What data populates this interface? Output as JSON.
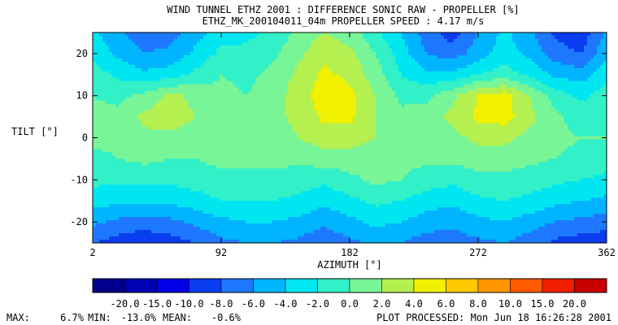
{
  "chart_data": {
    "type": "heatmap",
    "title": "WIND TUNNEL ETHZ 2001 : DIFFERENCE SONIC RAW - PROPELLER  [%]",
    "subtitle": "ETHZ_MK_200104011_04m PROPELLER SPEED :  4.17 m/s",
    "xlabel": "AZIMUTH [°]",
    "ylabel": "TILT [°]",
    "xlim": [
      2,
      362
    ],
    "ylim": [
      -25,
      25
    ],
    "x_ticks": [
      "2",
      "92",
      "182",
      "272",
      "362"
    ],
    "y_ticks": [
      "20",
      "10",
      "0",
      "-10",
      "-20"
    ],
    "levels": [
      -25.0,
      -20.0,
      -15.0,
      -10.0,
      -8.0,
      -6.0,
      -4.0,
      -2.0,
      0.0,
      2.0,
      4.0,
      6.0,
      8.0,
      10.0,
      15.0,
      20.0,
      25.0
    ],
    "colorbar_labels": [
      "-20.0",
      "-15.0",
      "-10.0",
      "-8.0",
      "-6.0",
      "-4.0",
      "-2.0",
      "0.0",
      "2.0",
      "4.0",
      "6.0",
      "8.0",
      "10.0",
      "15.0",
      "20.0"
    ],
    "colors": [
      "#00008c",
      "#0000b4",
      "#0000e6",
      "#0a3cf0",
      "#1e78ff",
      "#00b4ff",
      "#00e6f0",
      "#32f0c8",
      "#78f596",
      "#b4f050",
      "#f0f000",
      "#ffc800",
      "#ff9600",
      "#ff5a00",
      "#f01e00",
      "#c80000"
    ],
    "grid_tilt": [
      25,
      20,
      15,
      10,
      5,
      0,
      -5,
      -10,
      -15,
      -20,
      -25
    ],
    "grid_azimuth": [
      2,
      20,
      38,
      56,
      74,
      92,
      110,
      128,
      146,
      164,
      182,
      200,
      218,
      236,
      254,
      272,
      290,
      308,
      326,
      344,
      362
    ],
    "values": [
      [
        -3.5,
        -5.5,
        -7.5,
        -7.0,
        -5.0,
        -3.0,
        -2.5,
        -1.5,
        0.5,
        2.0,
        1.0,
        -1.5,
        -4.0,
        -7.0,
        -9.0,
        -6.0,
        -3.5,
        -5.5,
        -8.5,
        -9.5,
        -5.5
      ],
      [
        -2.5,
        -4.5,
        -6.0,
        -5.5,
        -3.5,
        -1.5,
        -1.5,
        -0.5,
        1.5,
        3.5,
        2.5,
        0.0,
        -3.0,
        -6.0,
        -7.0,
        -5.0,
        -3.0,
        -4.5,
        -7.0,
        -8.0,
        -4.5
      ],
      [
        -1.0,
        -2.5,
        -3.5,
        -3.0,
        -1.5,
        0.0,
        -0.5,
        0.5,
        2.5,
        4.5,
        3.5,
        1.0,
        -2.0,
        -3.5,
        -3.5,
        -2.0,
        -1.0,
        -2.5,
        -4.5,
        -5.0,
        -2.5
      ],
      [
        0.0,
        -0.5,
        0.5,
        2.5,
        1.5,
        0.5,
        0.0,
        1.0,
        3.0,
        5.0,
        4.5,
        2.0,
        -0.5,
        -0.5,
        1.5,
        4.0,
        5.0,
        2.0,
        -1.0,
        -2.5,
        -1.0
      ],
      [
        0.5,
        0.5,
        2.5,
        3.0,
        2.0,
        1.0,
        0.5,
        1.5,
        2.5,
        4.5,
        4.5,
        2.0,
        0.5,
        1.0,
        2.5,
        4.5,
        5.0,
        2.5,
        0.5,
        -1.0,
        0.0
      ],
      [
        0.5,
        0.5,
        1.5,
        1.5,
        1.0,
        0.5,
        0.5,
        1.0,
        2.0,
        3.0,
        3.0,
        2.0,
        1.0,
        1.0,
        1.5,
        2.5,
        2.5,
        1.5,
        0.5,
        0.0,
        0.0
      ],
      [
        -0.5,
        0.0,
        0.5,
        0.0,
        0.0,
        0.5,
        0.5,
        0.5,
        0.5,
        1.0,
        1.0,
        1.0,
        0.5,
        0.5,
        0.5,
        1.0,
        1.0,
        0.5,
        0.0,
        -0.5,
        -1.0
      ],
      [
        -1.5,
        -1.5,
        -1.5,
        -1.5,
        -1.0,
        -0.5,
        -0.5,
        -0.5,
        -1.0,
        -1.5,
        -0.5,
        0.5,
        0.0,
        -1.0,
        -1.5,
        -0.5,
        -0.5,
        -1.0,
        -1.5,
        -2.0,
        -2.5
      ],
      [
        -3.0,
        -3.5,
        -3.5,
        -3.5,
        -3.0,
        -2.0,
        -2.0,
        -2.0,
        -2.5,
        -3.5,
        -2.5,
        -1.5,
        -2.0,
        -3.0,
        -3.5,
        -2.5,
        -2.0,
        -2.5,
        -3.5,
        -4.0,
        -4.5
      ],
      [
        -5.5,
        -6.5,
        -7.0,
        -6.5,
        -5.5,
        -4.5,
        -4.0,
        -4.0,
        -4.5,
        -5.5,
        -4.5,
        -3.5,
        -4.0,
        -5.0,
        -5.5,
        -4.5,
        -4.0,
        -5.0,
        -6.0,
        -6.5,
        -7.0
      ],
      [
        -8.0,
        -9.0,
        -9.5,
        -9.0,
        -8.0,
        -6.5,
        -6.0,
        -6.0,
        -6.5,
        -7.5,
        -6.5,
        -5.5,
        -6.0,
        -7.0,
        -7.0,
        -6.5,
        -6.0,
        -7.0,
        -8.5,
        -9.0,
        -9.5
      ]
    ]
  },
  "stats": {
    "max_label": "MAX:",
    "max_value": "6.7%",
    "min_label": "MIN:",
    "min_value": "-13.0%",
    "mean_label": "MEAN:",
    "mean_value": "-0.6%"
  },
  "processed": "PLOT PROCESSED: Mon Jun 18 16:26:28 2001"
}
